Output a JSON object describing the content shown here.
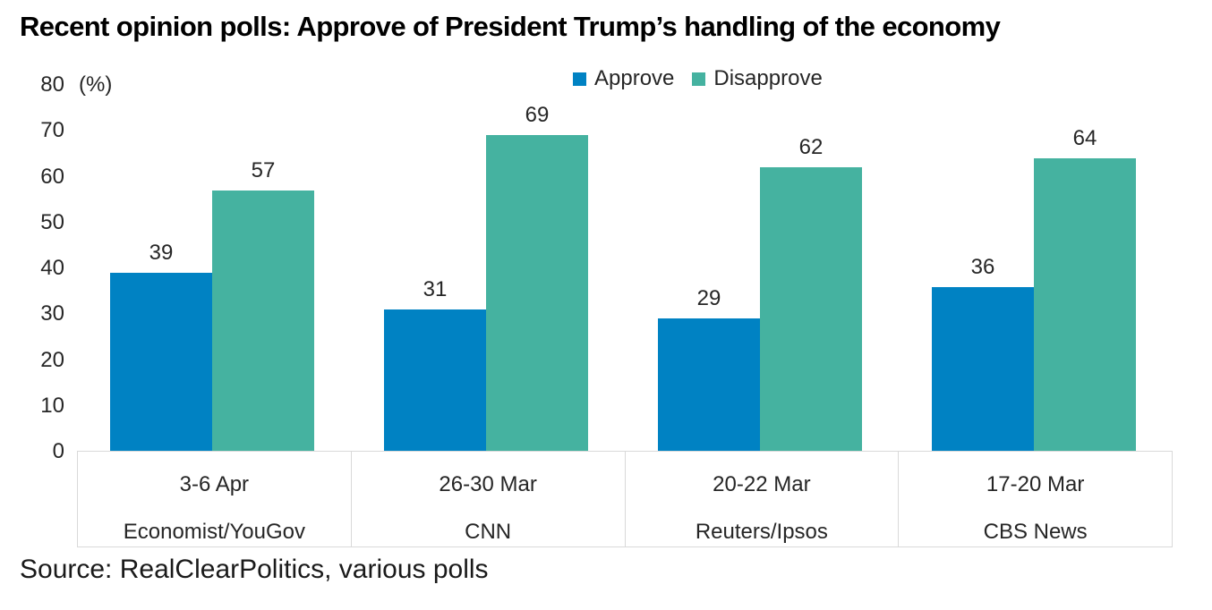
{
  "chart_data": {
    "type": "bar",
    "title": "Recent opinion polls: Approve of President Trump’s handling of the economy",
    "unit_label": "(%)",
    "categories": [
      {
        "date": "3-6 Apr",
        "pollster": "Economist/YouGov"
      },
      {
        "date": "26-30 Mar",
        "pollster": "CNN"
      },
      {
        "date": "20-22 Mar",
        "pollster": "Reuters/Ipsos"
      },
      {
        "date": "17-20 Mar",
        "pollster": "CBS News"
      }
    ],
    "series": [
      {
        "name": "Approve",
        "color": "#0082C3",
        "values": [
          39,
          31,
          29,
          36
        ]
      },
      {
        "name": "Disapprove",
        "color": "#45B2A0",
        "values": [
          57,
          69,
          62,
          64
        ]
      }
    ],
    "ylim": [
      0,
      80
    ],
    "yticks": [
      0,
      10,
      20,
      30,
      40,
      50,
      60,
      70,
      80
    ],
    "grid": false,
    "legend_position": "top-center",
    "source": "Source: RealClearPolitics, various polls",
    "border_color": "#D9D9D9"
  }
}
